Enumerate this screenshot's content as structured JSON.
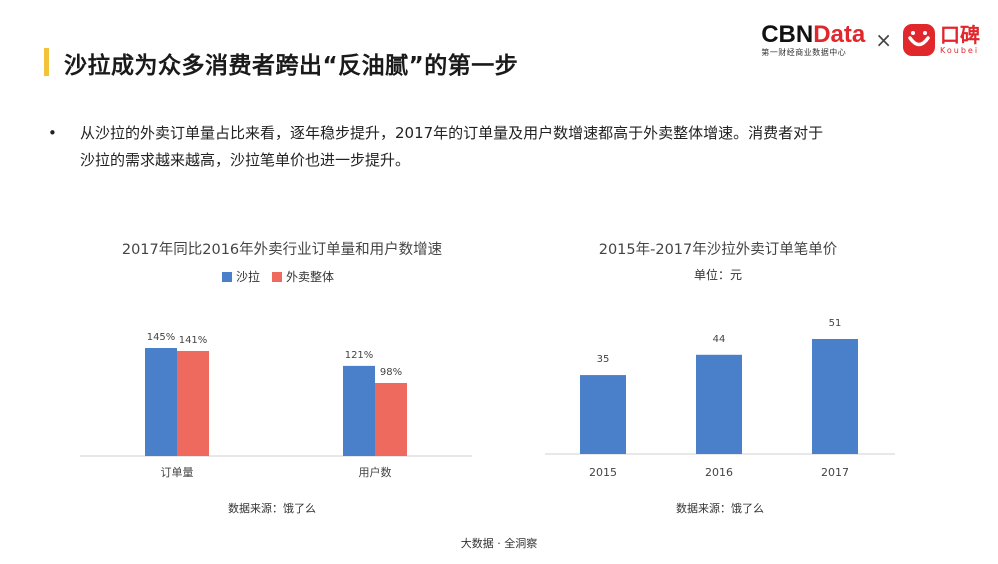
{
  "header": {
    "title": "沙拉成为众多消费者跨出“反油腻”的第一步",
    "logo_cbn_part1": "CBN",
    "logo_cbn_part2": "Data",
    "logo_cbn_sub": "第一财经商业数据中心",
    "times": "×",
    "logo_koubei_cn": "口碑",
    "logo_koubei_en": "Koubei"
  },
  "bullet": {
    "dot": "•",
    "line1": "从沙拉的外卖订单量占比来看，逐年稳步提升，2017年的订单量及用户数增速都高于外卖整体增速。消费者对于",
    "line2": "沙拉的需求越来越高，沙拉笔单价也进一步提升。"
  },
  "colors": {
    "blue": "#4a7fc9",
    "red": "#ef6a5e",
    "accent": "#f2c23a"
  },
  "chart_data": [
    {
      "type": "bar",
      "title": "2017年同比2016年外卖行业订单量和用户数增速",
      "categories": [
        "订单量",
        "用户数"
      ],
      "series": [
        {
          "name": "沙拉",
          "values": [
            145,
            121
          ],
          "labels": [
            "145%",
            "121%"
          ],
          "color": "#4a7fc9"
        },
        {
          "name": "外卖整体",
          "values": [
            141,
            98
          ],
          "labels": [
            "141%",
            "98%"
          ],
          "color": "#ef6a5e"
        }
      ],
      "legend_position": "top",
      "source": "数据来源：饿了么",
      "ylim": [
        0,
        145
      ]
    },
    {
      "type": "bar",
      "title": "2015年-2017年沙拉外卖订单笔单价",
      "unit": "单位：元",
      "categories": [
        "2015",
        "2016",
        "2017"
      ],
      "series": [
        {
          "values": [
            35,
            44,
            51
          ],
          "color": "#4a7fc9"
        }
      ],
      "source": "数据来源：饿了么",
      "ylim": [
        0,
        51
      ]
    }
  ],
  "footer": "大数据 · 全洞察"
}
